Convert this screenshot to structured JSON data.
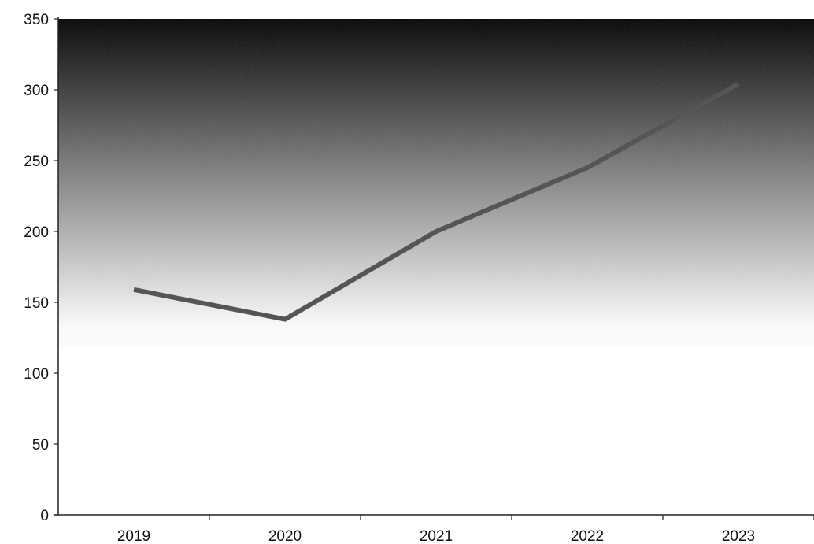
{
  "chart_data": {
    "type": "line",
    "title": "",
    "xlabel": "",
    "ylabel": "",
    "categories": [
      "2019",
      "2020",
      "2021",
      "2022",
      "2023"
    ],
    "series": [
      {
        "values": [
          159,
          138,
          200,
          245,
          304
        ]
      }
    ],
    "ylim": [
      0,
      350
    ],
    "yticks": [
      0,
      50,
      100,
      150,
      200,
      250,
      300,
      350
    ],
    "grid": false,
    "legend": "none",
    "colors": {
      "line": "#555555",
      "plot_background_top": "#000000",
      "plot_background_bottom": "#ffffff",
      "axis": "#222222"
    }
  }
}
